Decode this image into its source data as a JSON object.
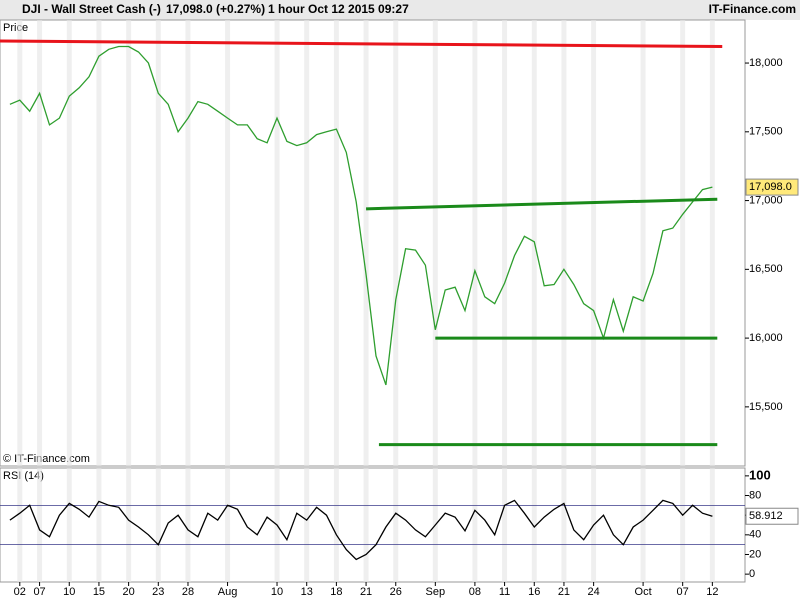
{
  "header": {
    "title": "DJI - Wall Street Cash (-)",
    "quote": "17,098.0 (+0.27%)",
    "interval": "1 hour",
    "datetime": "Oct 12 2015 09:27",
    "brand": "IT-Finance.com"
  },
  "chart_data": [
    {
      "type": "line",
      "title": "Price",
      "annotation": "© IT-Finance.com",
      "xlim": [
        -1,
        74.3
      ],
      "ylim": [
        15070,
        18313
      ],
      "xticks": [
        {
          "value": 1,
          "label": "02"
        },
        {
          "value": 3,
          "label": "07"
        },
        {
          "value": 6,
          "label": "10"
        },
        {
          "value": 9,
          "label": "15"
        },
        {
          "value": 12,
          "label": "20"
        },
        {
          "value": 15,
          "label": "23"
        },
        {
          "value": 18,
          "label": "28"
        },
        {
          "value": 22,
          "label": "Aug"
        },
        {
          "value": 27,
          "label": "10"
        },
        {
          "value": 30,
          "label": "13"
        },
        {
          "value": 33,
          "label": "18"
        },
        {
          "value": 36,
          "label": "21"
        },
        {
          "value": 39,
          "label": "26"
        },
        {
          "value": 43,
          "label": "Sep"
        },
        {
          "value": 47,
          "label": "08"
        },
        {
          "value": 50,
          "label": "11"
        },
        {
          "value": 53,
          "label": "16"
        },
        {
          "value": 56,
          "label": "21"
        },
        {
          "value": 59,
          "label": "24"
        },
        {
          "value": 64,
          "label": "Oct"
        },
        {
          "value": 68,
          "label": "07"
        },
        {
          "value": 71,
          "label": "12"
        }
      ],
      "yticks": [
        {
          "value": 15500,
          "label": "15,500"
        },
        {
          "value": 16000,
          "label": "16,000"
        },
        {
          "value": 16500,
          "label": "16,500"
        },
        {
          "value": 17000,
          "label": "17,000"
        },
        {
          "value": 17500,
          "label": "17,500"
        },
        {
          "value": 18000,
          "label": "18,000"
        }
      ],
      "grid": true,
      "x": [
        0,
        1,
        2,
        3,
        4,
        5,
        6,
        7,
        8,
        9,
        10,
        11,
        12,
        13,
        14,
        15,
        16,
        17,
        18,
        19,
        20,
        21,
        22,
        23,
        24,
        25,
        26,
        27,
        28,
        29,
        30,
        31,
        32,
        33,
        34,
        35,
        36,
        37,
        38,
        39,
        40,
        41,
        42,
        43,
        44,
        45,
        46,
        47,
        48,
        49,
        50,
        51,
        52,
        53,
        54,
        55,
        56,
        57,
        58,
        59,
        60,
        61,
        62,
        63,
        64,
        65,
        66,
        67,
        68,
        69,
        70,
        71
      ],
      "series": [
        {
          "color": "#2e9e2e",
          "values": [
            17700,
            17730,
            17650,
            17780,
            17550,
            17600,
            17760,
            17820,
            17900,
            18050,
            18100,
            18120,
            18120,
            18080,
            18000,
            17780,
            17700,
            17500,
            17600,
            17720,
            17700,
            17650,
            17600,
            17550,
            17550,
            17450,
            17420,
            17600,
            17430,
            17400,
            17420,
            17480,
            17500,
            17520,
            17350,
            16990,
            16460,
            15870,
            15660,
            16280,
            16650,
            16640,
            16530,
            16060,
            16350,
            16370,
            16200,
            16490,
            16300,
            16250,
            16400,
            16600,
            16740,
            16700,
            16380,
            16390,
            16500,
            16390,
            16250,
            16200,
            16000,
            16280,
            16050,
            16300,
            16270,
            16470,
            16780,
            16800,
            16900,
            16990,
            17080,
            17098
          ]
        }
      ],
      "last_price": {
        "value": 17098,
        "label": "17,098.0"
      },
      "lines": [
        {
          "color": "#e8141b",
          "x": [
            -1,
            72
          ],
          "y": [
            18160,
            18120
          ]
        },
        {
          "color": "#1a8a1a",
          "x": [
            36,
            71.5
          ],
          "y": [
            16940,
            17010
          ]
        },
        {
          "color": "#1a8a1a",
          "x": [
            43,
            71.5
          ],
          "y": [
            16000,
            16000
          ]
        },
        {
          "color": "#1a8a1a",
          "x": [
            37.3,
            71.5
          ],
          "y": [
            15225,
            15225
          ]
        }
      ]
    },
    {
      "type": "line",
      "title": "RSI (14)",
      "xlim": [
        -1,
        74.3
      ],
      "ylim": [
        -8,
        108
      ],
      "yticks": [
        0,
        20,
        40,
        60,
        80,
        100
      ],
      "levels": [
        30,
        70
      ],
      "x": [
        0,
        1,
        2,
        3,
        4,
        5,
        6,
        7,
        8,
        9,
        10,
        11,
        12,
        13,
        14,
        15,
        16,
        17,
        18,
        19,
        20,
        21,
        22,
        23,
        24,
        25,
        26,
        27,
        28,
        29,
        30,
        31,
        32,
        33,
        34,
        35,
        36,
        37,
        38,
        39,
        40,
        41,
        42,
        43,
        44,
        45,
        46,
        47,
        48,
        49,
        50,
        51,
        52,
        53,
        54,
        55,
        56,
        57,
        58,
        59,
        60,
        61,
        62,
        63,
        64,
        65,
        66,
        67,
        68,
        69,
        70,
        71
      ],
      "series": [
        {
          "color": "#000000",
          "values": [
            55,
            62,
            70,
            45,
            38,
            60,
            72,
            66,
            58,
            74,
            70,
            68,
            55,
            48,
            40,
            30,
            52,
            60,
            45,
            38,
            62,
            55,
            70,
            66,
            48,
            40,
            58,
            50,
            35,
            62,
            55,
            68,
            60,
            40,
            25,
            15,
            20,
            30,
            48,
            62,
            55,
            45,
            38,
            50,
            62,
            58,
            44,
            65,
            55,
            40,
            70,
            75,
            62,
            48,
            58,
            66,
            72,
            45,
            35,
            50,
            60,
            40,
            30,
            48,
            55,
            65,
            75,
            72,
            60,
            70,
            62,
            58.912
          ]
        }
      ],
      "last_value": 58.912
    }
  ]
}
